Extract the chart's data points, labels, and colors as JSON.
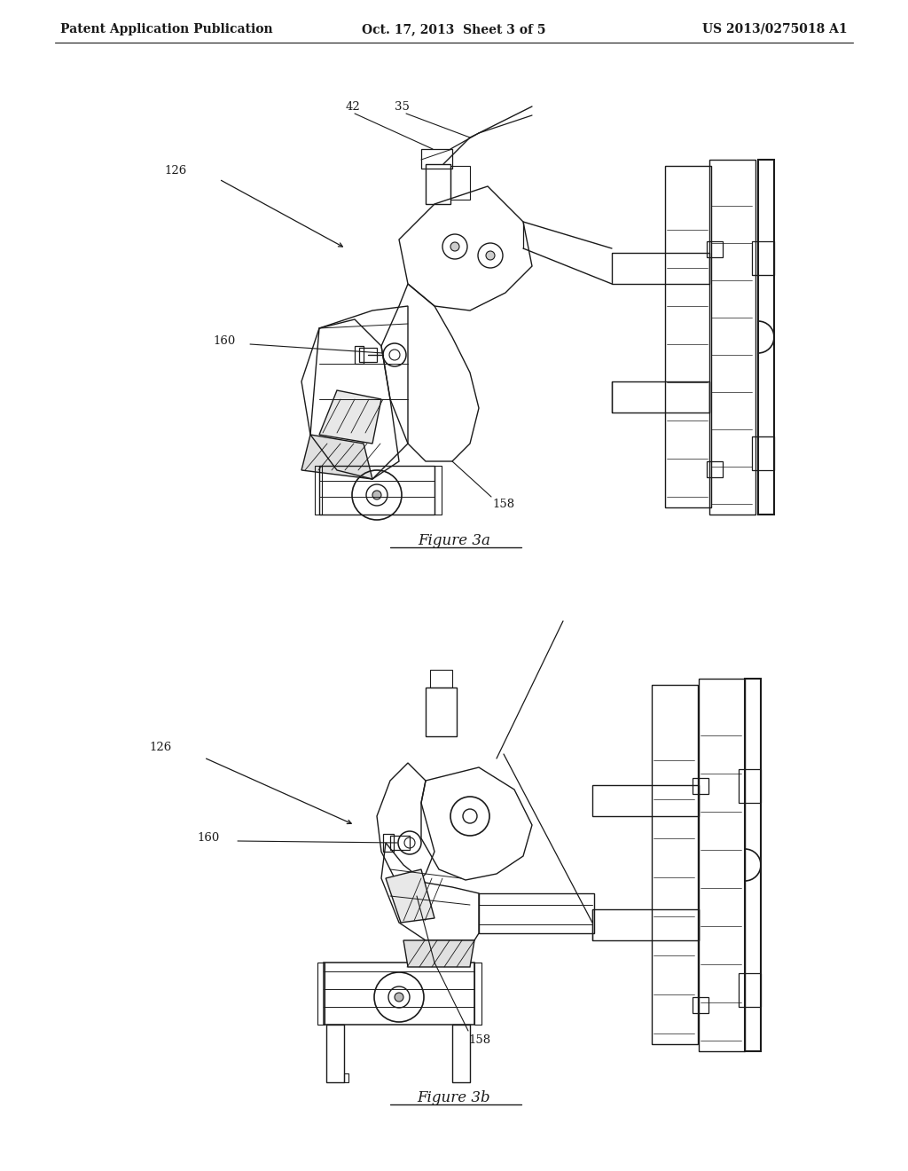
{
  "bg": "#ffffff",
  "lc": "#1a1a1a",
  "lc_light": "#555555",
  "header_left": "Patent Application Publication",
  "header_center": "Oct. 17, 2013  Sheet 3 of 5",
  "header_right": "US 2013/0275018 A1",
  "cap3a": "Figure 3a",
  "cap3b": "Figure 3b",
  "lfs": 9.5,
  "cfs": 12
}
